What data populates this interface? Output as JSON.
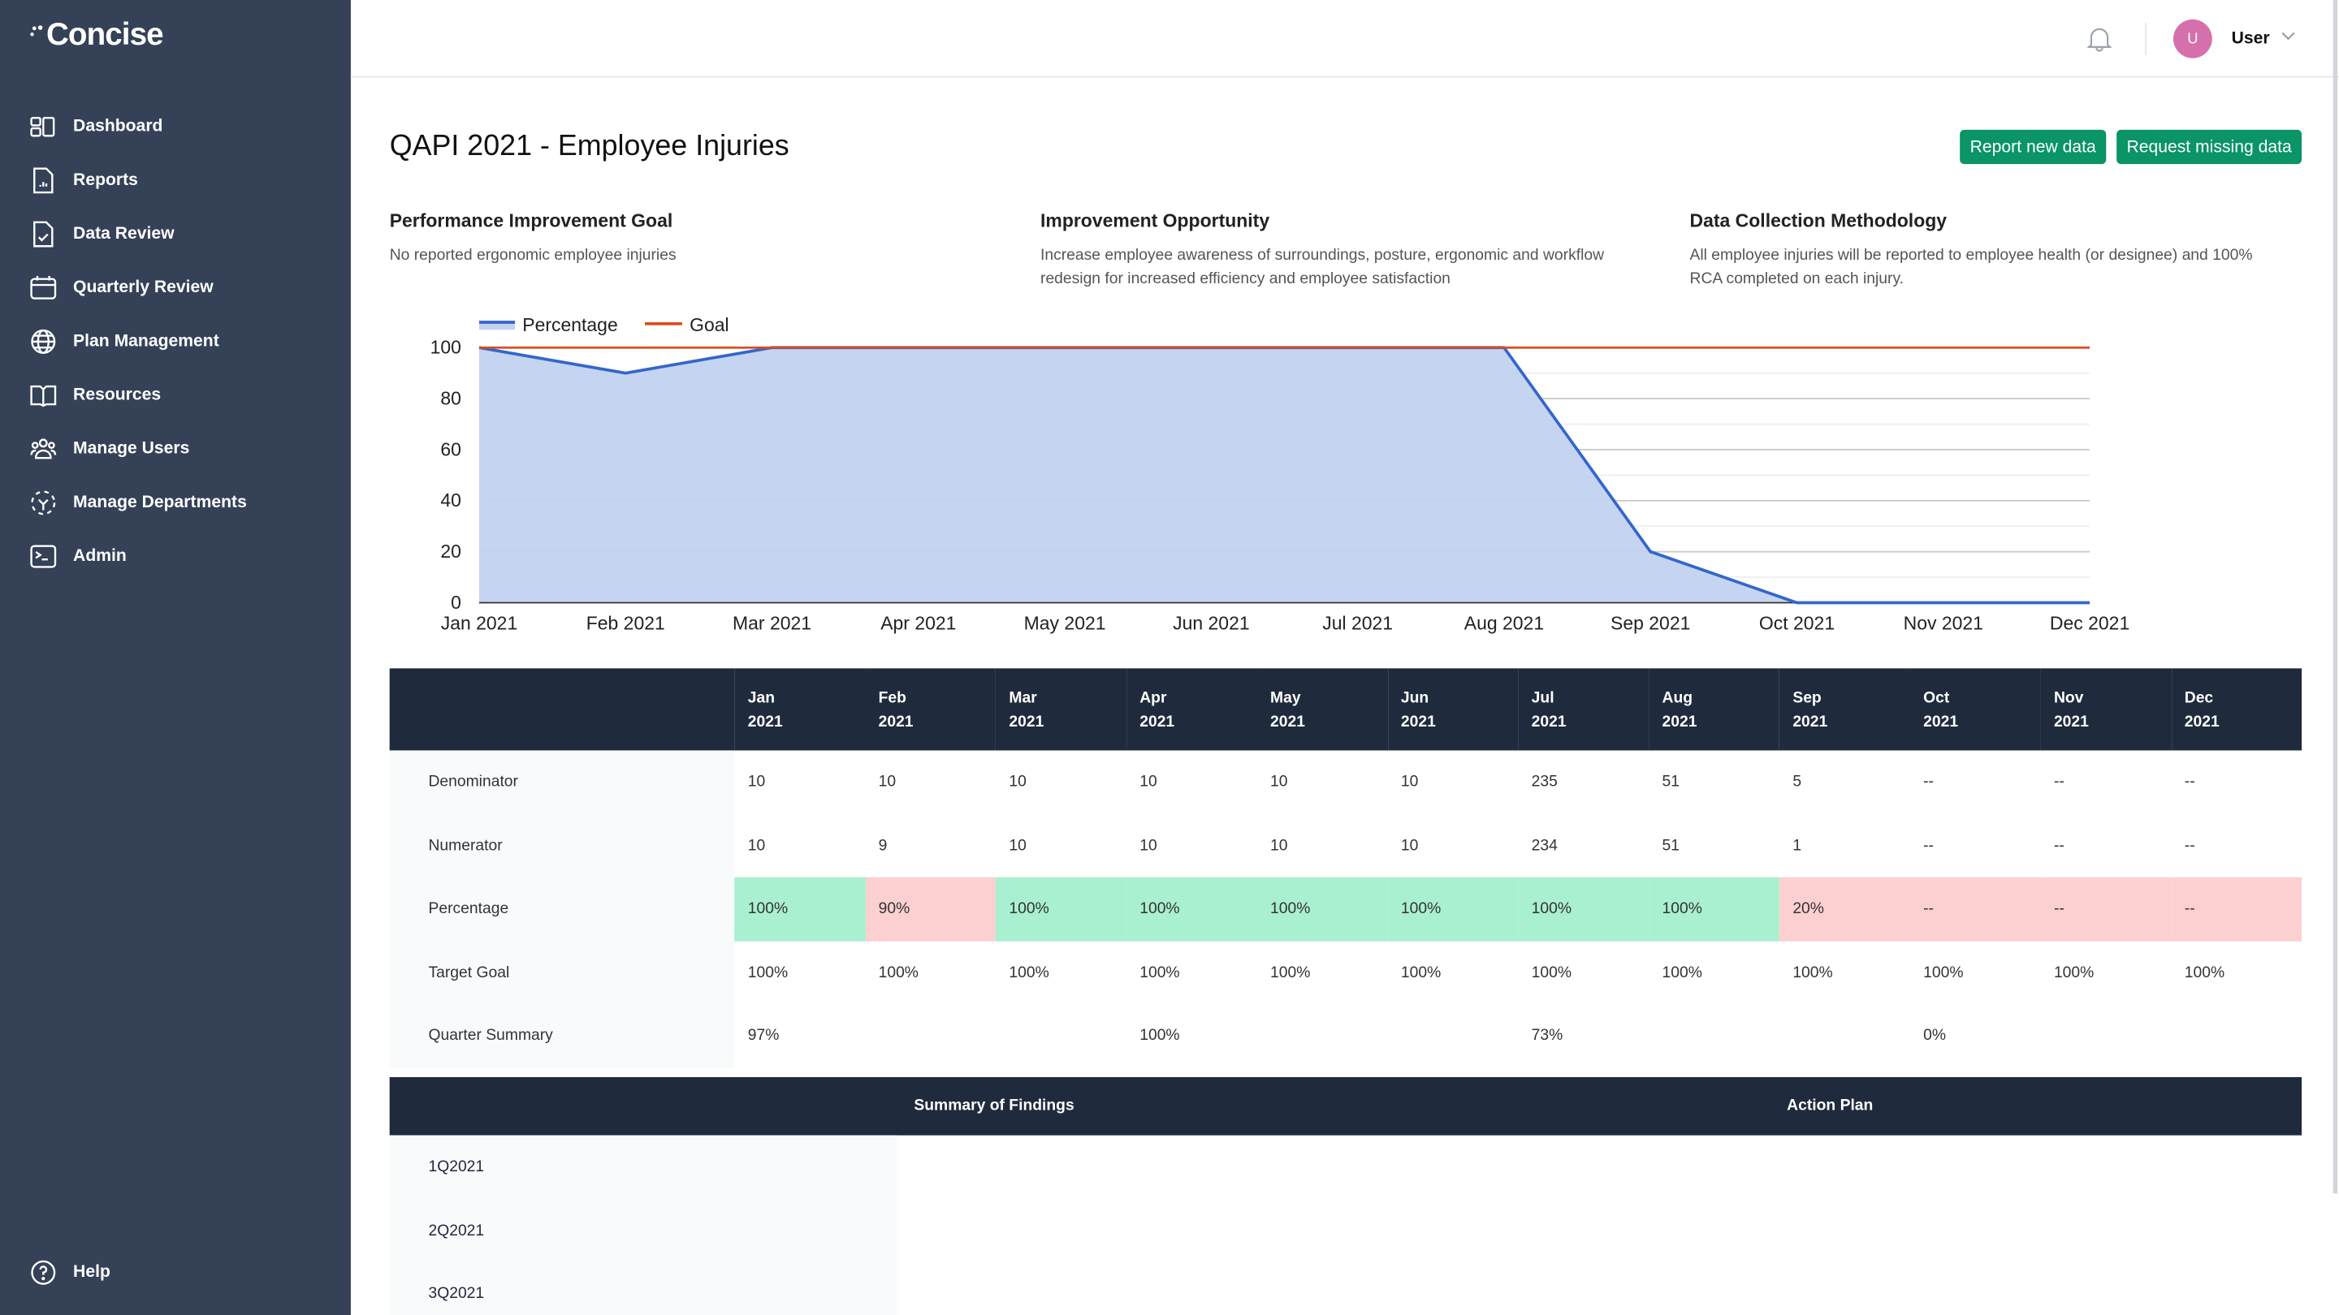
{
  "app": {
    "logo": "Concise"
  },
  "sidebar": {
    "items": [
      {
        "label": "Dashboard",
        "icon": "dashboard-icon"
      },
      {
        "label": "Reports",
        "icon": "report-icon"
      },
      {
        "label": "Data Review",
        "icon": "file-check-icon"
      },
      {
        "label": "Quarterly Review",
        "icon": "calendar-icon"
      },
      {
        "label": "Plan Management",
        "icon": "globe-icon"
      },
      {
        "label": "Resources",
        "icon": "book-icon"
      },
      {
        "label": "Manage Users",
        "icon": "users-icon"
      },
      {
        "label": "Manage Departments",
        "icon": "departments-icon"
      },
      {
        "label": "Admin",
        "icon": "terminal-icon"
      }
    ],
    "help": "Help"
  },
  "header": {
    "avatar_initial": "U",
    "user": "User"
  },
  "page": {
    "title": "QAPI 2021 - Employee Injuries",
    "report_button": "Report new data",
    "request_button": "Request missing data"
  },
  "sections": [
    {
      "title": "Performance Improvement Goal",
      "text": "No reported ergonomic employee injuries"
    },
    {
      "title": "Improvement Opportunity",
      "text": "Increase employee awareness of surroundings, posture, ergonomic and workflow redesign for increased efficiency and employee satisfaction"
    },
    {
      "title": "Data Collection Methodology",
      "text": "All employee injuries will be reported to employee health (or designee) and 100% RCA completed on each injury."
    }
  ],
  "chart_data": {
    "type": "area",
    "categories": [
      "Jan 2021",
      "Feb 2021",
      "Mar 2021",
      "Apr 2021",
      "May 2021",
      "Jun 2021",
      "Jul 2021",
      "Aug 2021",
      "Sep 2021",
      "Oct 2021",
      "Nov 2021",
      "Dec 2021"
    ],
    "series": [
      {
        "name": "Percentage",
        "type": "area",
        "color": "#3366cc",
        "fill": "#c2d2f0",
        "values": [
          100,
          90,
          100,
          100,
          100,
          100,
          100,
          100,
          20,
          0,
          0,
          0
        ]
      },
      {
        "name": "Goal",
        "type": "line",
        "color": "#dc4b1e",
        "values": [
          100,
          100,
          100,
          100,
          100,
          100,
          100,
          100,
          100,
          100,
          100,
          100
        ]
      }
    ],
    "ylim": [
      0,
      100
    ],
    "yticks": [
      0,
      20,
      40,
      60,
      80,
      100
    ],
    "grid": true,
    "legend": "top-left"
  },
  "table": {
    "months": [
      [
        "Jan",
        "2021"
      ],
      [
        "Feb",
        "2021"
      ],
      [
        "Mar",
        "2021"
      ],
      [
        "Apr",
        "2021"
      ],
      [
        "May",
        "2021"
      ],
      [
        "Jun",
        "2021"
      ],
      [
        "Jul",
        "2021"
      ],
      [
        "Aug",
        "2021"
      ],
      [
        "Sep",
        "2021"
      ],
      [
        "Oct",
        "2021"
      ],
      [
        "Nov",
        "2021"
      ],
      [
        "Dec",
        "2021"
      ]
    ],
    "rows": [
      {
        "label": "Denominator",
        "values": [
          "10",
          "10",
          "10",
          "10",
          "10",
          "10",
          "235",
          "51",
          "5",
          "--",
          "--",
          "--"
        ]
      },
      {
        "label": "Numerator",
        "values": [
          "10",
          "9",
          "10",
          "10",
          "10",
          "10",
          "234",
          "51",
          "1",
          "--",
          "--",
          "--"
        ]
      },
      {
        "label": "Percentage",
        "values": [
          "100%",
          "90%",
          "100%",
          "100%",
          "100%",
          "100%",
          "100%",
          "100%",
          "20%",
          "--",
          "--",
          "--"
        ],
        "status": [
          "good",
          "bad",
          "good",
          "good",
          "good",
          "good",
          "good",
          "good",
          "bad",
          "bad",
          "bad",
          "bad"
        ]
      },
      {
        "label": "Target Goal",
        "values": [
          "100%",
          "100%",
          "100%",
          "100%",
          "100%",
          "100%",
          "100%",
          "100%",
          "100%",
          "100%",
          "100%",
          "100%"
        ]
      },
      {
        "label": "Quarter Summary",
        "values": [
          "97%",
          "",
          "",
          "100%",
          "",
          "",
          "73%",
          "",
          "",
          "0%",
          "",
          ""
        ]
      }
    ]
  },
  "findings": {
    "headers": [
      "Summary of Findings",
      "Action Plan"
    ],
    "rows": [
      "1Q2021",
      "2Q2021",
      "3Q2021"
    ]
  },
  "colors": {
    "sidebar": "#344157",
    "button": "#0a9467",
    "good": "#a9f0d0",
    "bad": "#fcd0d0",
    "table_header": "#1f2a3c"
  }
}
